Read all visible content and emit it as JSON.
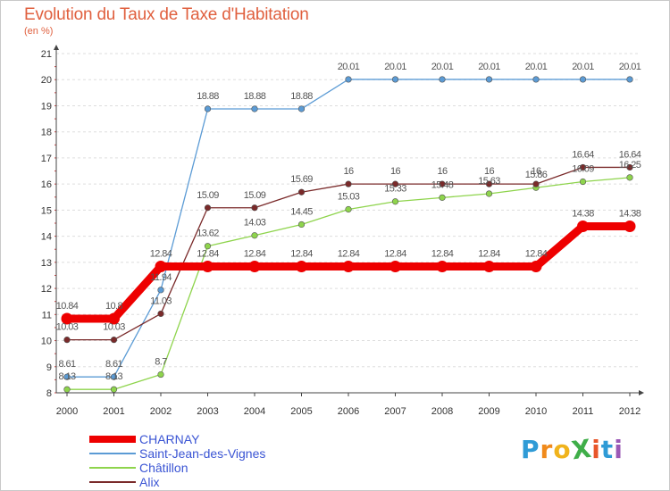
{
  "title": "Evolution du Taux de Taxe d'Habitation",
  "subtitle": "(en %)",
  "logo": {
    "text": "ProXiti",
    "letters": [
      "P",
      "r",
      "o",
      "X",
      "i",
      "t",
      "i"
    ],
    "colors": [
      "#2f9bd6",
      "#f08a1c",
      "#f0b31c",
      "#3fae49",
      "#e8562a",
      "#2f9bd6",
      "#9b59b6"
    ]
  },
  "chart_data": {
    "type": "line",
    "title": "Evolution du Taux de Taxe d'Habitation",
    "ylabel": "(en %)",
    "xlabel": "",
    "x": [
      2000,
      2001,
      2002,
      2003,
      2004,
      2005,
      2006,
      2007,
      2008,
      2009,
      2010,
      2011,
      2012
    ],
    "xticks": [
      "2000",
      "2001",
      "2002",
      "2003",
      "2004",
      "2005",
      "2006",
      "2007",
      "2008",
      "2009",
      "2010",
      "2011",
      "2012"
    ],
    "ylim": [
      8,
      21
    ],
    "yticks": [
      "8",
      "9",
      "10",
      "11",
      "12",
      "13",
      "14",
      "15",
      "16",
      "17",
      "18",
      "19",
      "20",
      "21"
    ],
    "grid": "horizontal dashed",
    "legend_position": "bottom-left",
    "series": [
      {
        "name": "CHARNAY",
        "color": "#ee0000",
        "values": [
          10.84,
          10.84,
          12.84,
          12.84,
          12.84,
          12.84,
          12.84,
          12.84,
          12.84,
          12.84,
          12.84,
          14.38,
          14.38
        ],
        "labels": [
          "10.84",
          "10.8",
          "12.84",
          "12.84",
          "12.84",
          "12.84",
          "12.84",
          "12.84",
          "12.84",
          "12.84",
          "12.84",
          "14.38",
          "14.38"
        ]
      },
      {
        "name": "Saint-Jean-des-Vignes",
        "color": "#5b9bd5",
        "values": [
          8.61,
          8.61,
          11.94,
          18.88,
          18.88,
          18.88,
          20.01,
          20.01,
          20.01,
          20.01,
          20.01,
          20.01,
          20.01
        ],
        "labels": [
          "8.61",
          "8.61",
          "11.94",
          "18.88",
          "18.88",
          "18.88",
          "20.01",
          "20.01",
          "20.01",
          "20.01",
          "20.01",
          "20.01",
          "20.01"
        ]
      },
      {
        "name": "Châtillon",
        "color": "#8ed44c",
        "values": [
          8.13,
          8.13,
          8.7,
          13.62,
          14.03,
          14.45,
          15.03,
          15.33,
          15.48,
          15.63,
          15.86,
          16.09,
          16.25
        ],
        "labels": [
          "8.13",
          "8.13",
          "8.7",
          "13.62",
          "14.03",
          "14.45",
          "15.03",
          "15.33",
          "15.48",
          "15.63",
          "15.86",
          "16.09",
          "16.25"
        ]
      },
      {
        "name": "Alix",
        "color": "#7a2a2a",
        "values": [
          10.03,
          10.03,
          11.03,
          15.09,
          15.09,
          15.69,
          16,
          16,
          16,
          16,
          16,
          16.64,
          16.64
        ],
        "labels": [
          "10.03",
          "10.03",
          "11.03",
          "15.09",
          "15.09",
          "15.69",
          "16",
          "16",
          "16",
          "16",
          "16",
          "16.64",
          "16.64"
        ]
      }
    ]
  }
}
